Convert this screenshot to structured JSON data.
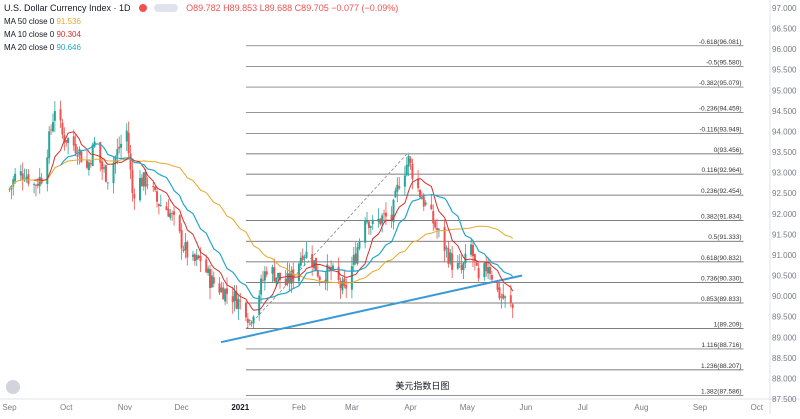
{
  "header": {
    "symbol": "U.S. Dollar Currency Index · 1D",
    "ohlc": "O89.782  H89.853  L89.688  C89.705  −0.077 (−0.09%)"
  },
  "moving_averages": [
    {
      "label": "MA 50 close 0",
      "value": "91.536",
      "color": "#e6a82a"
    },
    {
      "label": "MA 10 close 0",
      "value": "90.304",
      "color": "#d32f2f"
    },
    {
      "label": "MA 20 close 0",
      "value": "90.646",
      "color": "#26a6c8"
    }
  ],
  "colors": {
    "up": "#26a69a",
    "down": "#ef5350",
    "trend": "#3a9ad9",
    "fib": "#555555",
    "axis_text": "#787b86"
  },
  "caption": "美元指数日图",
  "chart_data": {
    "type": "candlestick",
    "y_axis": {
      "min": 87.5,
      "max": 97.0,
      "ticks": [
        "87.500",
        "88.000",
        "88.500",
        "89.000",
        "89.500",
        "90.000",
        "90.500",
        "91.000",
        "91.500",
        "92.000",
        "92.500",
        "93.000",
        "93.500",
        "94.000",
        "94.500",
        "95.000",
        "95.500",
        "96.000",
        "96.500",
        "97.000"
      ]
    },
    "x_axis": {
      "labels": [
        "Sep",
        "Oct",
        "Nov",
        "Dec",
        "2021",
        "Feb",
        "Mar",
        "Apr",
        "May",
        "Jun",
        "Jul",
        "Aug",
        "Sep",
        "Oct"
      ]
    },
    "fib_levels": [
      {
        "label": "-0.618(96.081)",
        "value": 96.081
      },
      {
        "label": "-0.5(95.580)",
        "value": 95.58
      },
      {
        "label": "-0.382(95.079)",
        "value": 95.079
      },
      {
        "label": "-0.236(94.459)",
        "value": 94.459
      },
      {
        "label": "-0.116(93.949)",
        "value": 93.949
      },
      {
        "label": "0(93.456)",
        "value": 93.456
      },
      {
        "label": "0.116(92.964)",
        "value": 92.964
      },
      {
        "label": "0.236(92.454)",
        "value": 92.454
      },
      {
        "label": "0.382(91.834)",
        "value": 91.834
      },
      {
        "label": "0.5(91.333)",
        "value": 91.333
      },
      {
        "label": "0.618(90.832)",
        "value": 90.832
      },
      {
        "label": "0.736(90.330)",
        "value": 90.33
      },
      {
        "label": "0.853(89.833)",
        "value": 89.833
      },
      {
        "label": "1(89.209)",
        "value": 89.209
      },
      {
        "label": "1.116(88.716)",
        "value": 88.716
      },
      {
        "label": "1.236(88.207)",
        "value": 88.207
      },
      {
        "label": "1.382(87.586)",
        "value": 87.586
      }
    ],
    "price_path": [
      [
        "2020-09-01",
        92.6
      ],
      [
        "2020-09-04",
        92.9
      ],
      [
        "2020-09-09",
        93.0
      ],
      [
        "2020-09-14",
        92.7
      ],
      [
        "2020-09-18",
        92.9
      ],
      [
        "2020-09-22",
        93.8
      ],
      [
        "2020-09-25",
        94.6
      ],
      [
        "2020-09-29",
        93.9
      ],
      [
        "2020-10-02",
        93.8
      ],
      [
        "2020-10-07",
        93.6
      ],
      [
        "2020-10-12",
        93.1
      ],
      [
        "2020-10-16",
        93.7
      ],
      [
        "2020-10-20",
        93.1
      ],
      [
        "2020-10-23",
        92.9
      ],
      [
        "2020-10-28",
        93.5
      ],
      [
        "2020-11-02",
        94.0
      ],
      [
        "2020-11-05",
        92.5
      ],
      [
        "2020-11-09",
        92.8
      ],
      [
        "2020-11-13",
        92.8
      ],
      [
        "2020-11-18",
        92.3
      ],
      [
        "2020-11-24",
        92.1
      ],
      [
        "2020-11-27",
        91.8
      ],
      [
        "2020-12-02",
        91.2
      ],
      [
        "2020-12-07",
        90.8
      ],
      [
        "2020-12-11",
        90.9
      ],
      [
        "2020-12-16",
        90.4
      ],
      [
        "2020-12-21",
        90.2
      ],
      [
        "2020-12-28",
        90.0
      ],
      [
        "2021-01-04",
        89.7
      ],
      [
        "2021-01-06",
        89.4
      ],
      [
        "2021-01-11",
        90.1
      ],
      [
        "2021-01-15",
        90.7
      ],
      [
        "2021-01-20",
        90.5
      ],
      [
        "2021-01-25",
        90.3
      ],
      [
        "2021-01-29",
        90.5
      ],
      [
        "2021-02-03",
        91.1
      ],
      [
        "2021-02-08",
        90.9
      ],
      [
        "2021-02-12",
        90.5
      ],
      [
        "2021-02-18",
        90.6
      ],
      [
        "2021-02-25",
        90.1
      ],
      [
        "2021-03-03",
        91.0
      ],
      [
        "2021-03-08",
        92.0
      ],
      [
        "2021-03-12",
        91.7
      ],
      [
        "2021-03-17",
        91.9
      ],
      [
        "2021-03-22",
        91.9
      ],
      [
        "2021-03-26",
        92.8
      ],
      [
        "2021-03-31",
        93.3
      ],
      [
        "2021-04-05",
        92.6
      ],
      [
        "2021-04-09",
        92.2
      ],
      [
        "2021-04-14",
        91.7
      ],
      [
        "2021-04-19",
        91.2
      ],
      [
        "2021-04-23",
        90.8
      ],
      [
        "2021-04-28",
        90.6
      ],
      [
        "2021-05-03",
        91.2
      ],
      [
        "2021-05-07",
        90.3
      ],
      [
        "2021-05-12",
        90.8
      ],
      [
        "2021-05-17",
        90.1
      ],
      [
        "2021-05-21",
        89.9
      ],
      [
        "2021-05-25",
        89.7
      ]
    ],
    "trendline": [
      [
        "2021-01-04",
        89.1
      ],
      [
        "2021-05-30",
        90.5
      ]
    ],
    "projection_line": [
      [
        "2021-01-04",
        89.2
      ],
      [
        "2021-03-31",
        93.5
      ]
    ],
    "ma_end_values": {
      "MA 50": 91.536,
      "MA 10": 90.304,
      "MA 20": 90.646
    }
  }
}
